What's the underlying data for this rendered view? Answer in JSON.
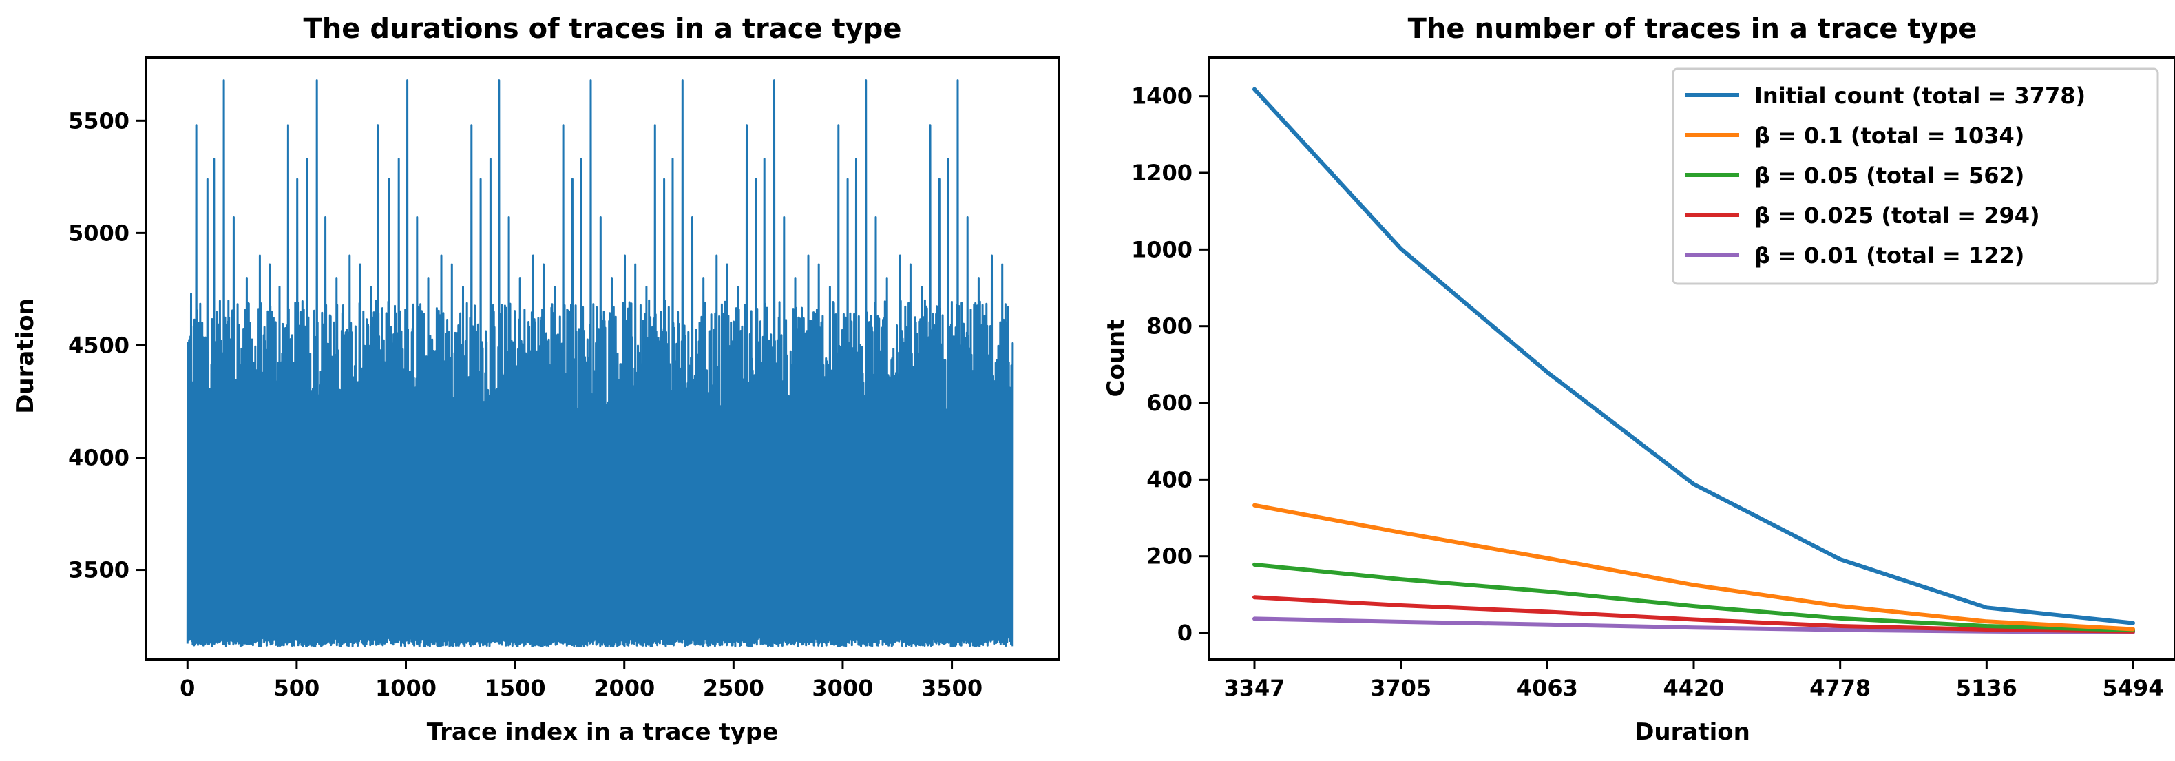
{
  "chart_data": [
    {
      "type": "line",
      "title": "The durations of traces in a trace type",
      "xlabel": "Trace index in a trace type",
      "ylabel": "Duration",
      "xlim": [
        -190,
        3990
      ],
      "ylim": [
        3100,
        5780
      ],
      "xticks": [
        0,
        500,
        1000,
        1500,
        2000,
        2500,
        3000,
        3500
      ],
      "yticks": [
        3500,
        4000,
        4500,
        5000,
        5500
      ],
      "n_points": 3778,
      "y_min": 3160,
      "y_max": 5680,
      "series_color": "#1f77b4",
      "peaks": [
        {
          "x": 15,
          "y": 4730
        },
        {
          "x": 40,
          "y": 5480
        },
        {
          "x": 90,
          "y": 5240
        },
        {
          "x": 120,
          "y": 5330
        },
        {
          "x": 165,
          "y": 5680
        },
        {
          "x": 210,
          "y": 5070
        },
        {
          "x": 270,
          "y": 4800
        },
        {
          "x": 330,
          "y": 4900
        },
        {
          "x": 375,
          "y": 4860
        },
        {
          "x": 420,
          "y": 4760
        },
        {
          "x": 460,
          "y": 5480
        },
        {
          "x": 500,
          "y": 5240
        },
        {
          "x": 545,
          "y": 5330
        },
        {
          "x": 590,
          "y": 5680
        },
        {
          "x": 630,
          "y": 5070
        },
        {
          "x": 680,
          "y": 4800
        },
        {
          "x": 740,
          "y": 4900
        },
        {
          "x": 790,
          "y": 4860
        },
        {
          "x": 840,
          "y": 4760
        },
        {
          "x": 870,
          "y": 5480
        },
        {
          "x": 920,
          "y": 5240
        },
        {
          "x": 965,
          "y": 5330
        },
        {
          "x": 1005,
          "y": 5680
        },
        {
          "x": 1050,
          "y": 5070
        },
        {
          "x": 1100,
          "y": 4800
        },
        {
          "x": 1160,
          "y": 4900
        },
        {
          "x": 1210,
          "y": 4860
        },
        {
          "x": 1260,
          "y": 4760
        },
        {
          "x": 1300,
          "y": 5480
        },
        {
          "x": 1340,
          "y": 5240
        },
        {
          "x": 1385,
          "y": 5330
        },
        {
          "x": 1425,
          "y": 5680
        },
        {
          "x": 1470,
          "y": 5070
        },
        {
          "x": 1520,
          "y": 4800
        },
        {
          "x": 1580,
          "y": 4900
        },
        {
          "x": 1630,
          "y": 4860
        },
        {
          "x": 1680,
          "y": 4760
        },
        {
          "x": 1720,
          "y": 5480
        },
        {
          "x": 1760,
          "y": 5240
        },
        {
          "x": 1800,
          "y": 5330
        },
        {
          "x": 1845,
          "y": 5680
        },
        {
          "x": 1890,
          "y": 5070
        },
        {
          "x": 1940,
          "y": 4800
        },
        {
          "x": 2000,
          "y": 4900
        },
        {
          "x": 2050,
          "y": 4860
        },
        {
          "x": 2100,
          "y": 4760
        },
        {
          "x": 2140,
          "y": 5480
        },
        {
          "x": 2180,
          "y": 5240
        },
        {
          "x": 2220,
          "y": 5330
        },
        {
          "x": 2265,
          "y": 5680
        },
        {
          "x": 2310,
          "y": 5070
        },
        {
          "x": 2360,
          "y": 4800
        },
        {
          "x": 2420,
          "y": 4900
        },
        {
          "x": 2470,
          "y": 4860
        },
        {
          "x": 2520,
          "y": 4760
        },
        {
          "x": 2560,
          "y": 5480
        },
        {
          "x": 2600,
          "y": 5240
        },
        {
          "x": 2640,
          "y": 5330
        },
        {
          "x": 2685,
          "y": 5680
        },
        {
          "x": 2730,
          "y": 5070
        },
        {
          "x": 2780,
          "y": 4800
        },
        {
          "x": 2840,
          "y": 4900
        },
        {
          "x": 2890,
          "y": 4860
        },
        {
          "x": 2940,
          "y": 4760
        },
        {
          "x": 2980,
          "y": 5480
        },
        {
          "x": 3020,
          "y": 5240
        },
        {
          "x": 3060,
          "y": 5330
        },
        {
          "x": 3105,
          "y": 5680
        },
        {
          "x": 3150,
          "y": 5070
        },
        {
          "x": 3200,
          "y": 4800
        },
        {
          "x": 3260,
          "y": 4900
        },
        {
          "x": 3310,
          "y": 4860
        },
        {
          "x": 3360,
          "y": 4760
        },
        {
          "x": 3400,
          "y": 5480
        },
        {
          "x": 3440,
          "y": 5240
        },
        {
          "x": 3480,
          "y": 5330
        },
        {
          "x": 3525,
          "y": 5680
        },
        {
          "x": 3570,
          "y": 5070
        },
        {
          "x": 3620,
          "y": 4800
        },
        {
          "x": 3680,
          "y": 4900
        },
        {
          "x": 3730,
          "y": 4860
        },
        {
          "x": 3770,
          "y": 4410
        }
      ]
    },
    {
      "type": "line",
      "title": "The number of traces in a trace type",
      "xlabel": "Duration",
      "ylabel": "Count",
      "categories": [
        "3347",
        "3705",
        "4063",
        "4420",
        "4778",
        "5136",
        "5494"
      ],
      "ylim": [
        -70,
        1500
      ],
      "yticks": [
        0,
        200,
        400,
        600,
        800,
        1000,
        1200,
        1400
      ],
      "legend_position": "top-right",
      "series": [
        {
          "name_prefix": "Initial count",
          "name_beta": "",
          "name_total": "(total = 3778)",
          "color": "#1f77b4",
          "values": [
            1418,
            1002,
            680,
            388,
            192,
            66,
            26
          ]
        },
        {
          "name_prefix": "",
          "name_beta": "β = 0.1",
          "name_total": "(total = 1034)",
          "color": "#ff7f0e",
          "values": [
            333,
            262,
            195,
            125,
            70,
            30,
            10
          ]
        },
        {
          "name_prefix": "",
          "name_beta": " β = 0.05",
          "name_total": "(total = 562)",
          "color": "#2ca02c",
          "values": [
            178,
            140,
            108,
            70,
            38,
            18,
            7
          ]
        },
        {
          "name_prefix": "",
          "name_beta": "β = 0.025",
          "name_total": "(total = 294)",
          "color": "#d62728",
          "values": [
            93,
            72,
            55,
            35,
            18,
            9,
            4
          ]
        },
        {
          "name_prefix": "",
          "name_beta": "β = 0.01",
          "name_total": "(total = 122)",
          "color": "#9467bd",
          "values": [
            37,
            29,
            22,
            14,
            8,
            4,
            2
          ]
        }
      ]
    }
  ]
}
